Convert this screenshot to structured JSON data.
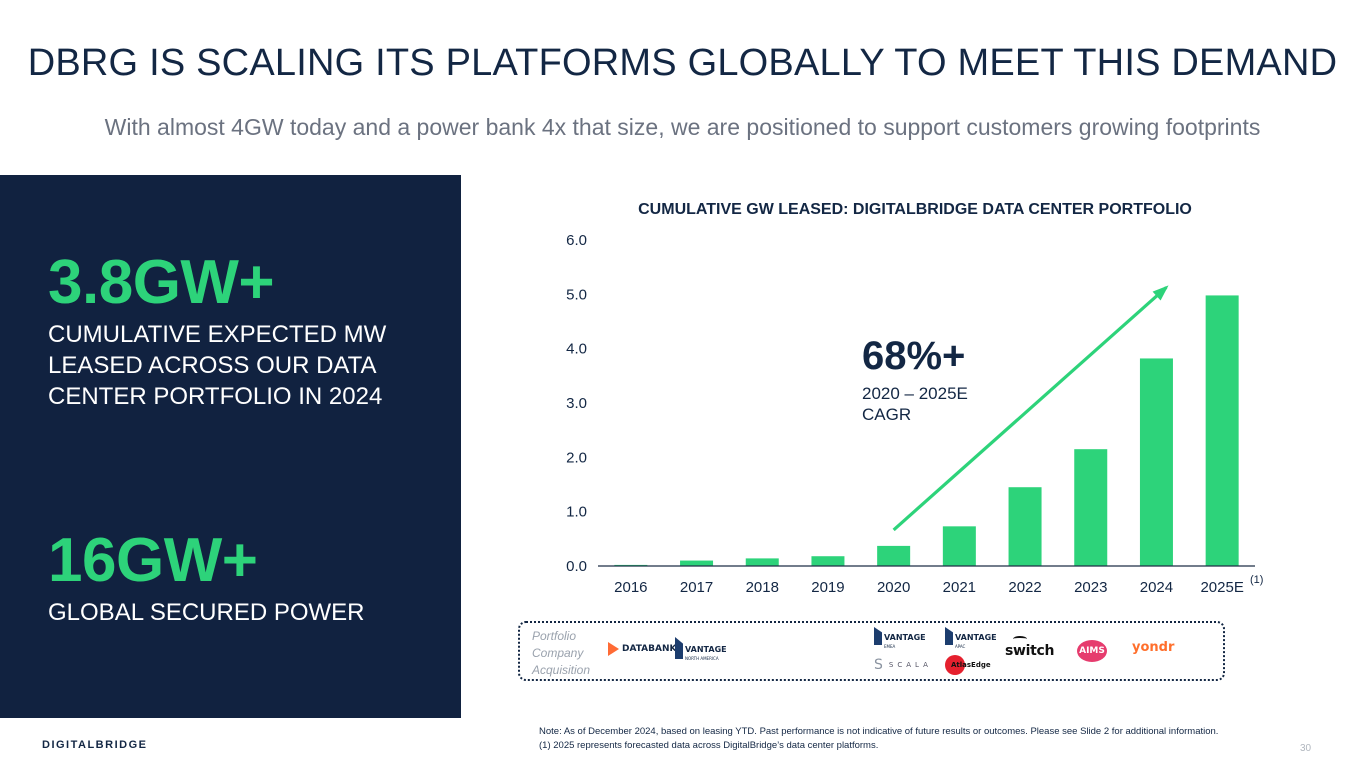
{
  "title": "DBRG IS SCALING ITS PLATFORMS GLOBALLY TO MEET THIS DEMAND",
  "subtitle": "With almost 4GW today and a power bank 4x that size, we are positioned to support customers growing footprints",
  "left_panel": {
    "stat1_value": "3.8GW+",
    "stat1_desc": "CUMULATIVE EXPECTED MW LEASED ACROSS OUR DATA CENTER PORTFOLIO IN 2024",
    "stat2_value": "16GW+",
    "stat2_desc": "GLOBAL SECURED POWER"
  },
  "cagr": {
    "value": "68%+",
    "range": "2020 – 2025E",
    "label": "CAGR"
  },
  "footnote_marker": "(1)",
  "acquisitions": {
    "label": "Portfolio Company Acquisition",
    "logos": [
      {
        "name": "DATABANK",
        "icon": "databank-logo"
      },
      {
        "name": "VANTAGE",
        "sub": "NORTH AMERICA",
        "icon": "vantage-logo"
      },
      {
        "name": "VANTAGE",
        "sub": "EMEA",
        "icon": "vantage-logo"
      },
      {
        "name": "SCALA",
        "icon": "scala-logo"
      },
      {
        "name": "VANTAGE",
        "sub": "APAC",
        "icon": "vantage-logo"
      },
      {
        "name": "AtlasEdge",
        "icon": "atlasedge-logo"
      },
      {
        "name": "switch",
        "icon": "switch-logo"
      },
      {
        "name": "AIMS",
        "icon": "aims-logo"
      },
      {
        "name": "yondr",
        "icon": "yondr-logo"
      }
    ]
  },
  "footer": {
    "brand": "DIGITALBRIDGE",
    "note": "Note: As of December 2024, based on leasing YTD. Past performance is not indicative of future results or outcomes. Please see Slide 2 for additional information. (1) 2025 represents forecasted data across DigitalBridge’s data center platforms.",
    "page": "30"
  },
  "colors": {
    "navy": "#112240",
    "green": "#2dd37a",
    "text": "#132744"
  },
  "chart_data": {
    "type": "bar",
    "title": "CUMULATIVE GW LEASED: DIGITALBRIDGE DATA CENTER PORTFOLIO",
    "categories": [
      "2016",
      "2017",
      "2018",
      "2019",
      "2020",
      "2021",
      "2022",
      "2023",
      "2024",
      "2025E"
    ],
    "values": [
      0.02,
      0.1,
      0.14,
      0.18,
      0.37,
      0.73,
      1.45,
      2.15,
      3.82,
      4.98
    ],
    "ylim": [
      0,
      6
    ],
    "yticks": [
      "0.0",
      "1.0",
      "2.0",
      "3.0",
      "4.0",
      "5.0",
      "6.0"
    ],
    "xlabel": "",
    "ylabel": "",
    "grid": false,
    "trend_arrow": {
      "from": "2020",
      "to": "2025E"
    }
  }
}
